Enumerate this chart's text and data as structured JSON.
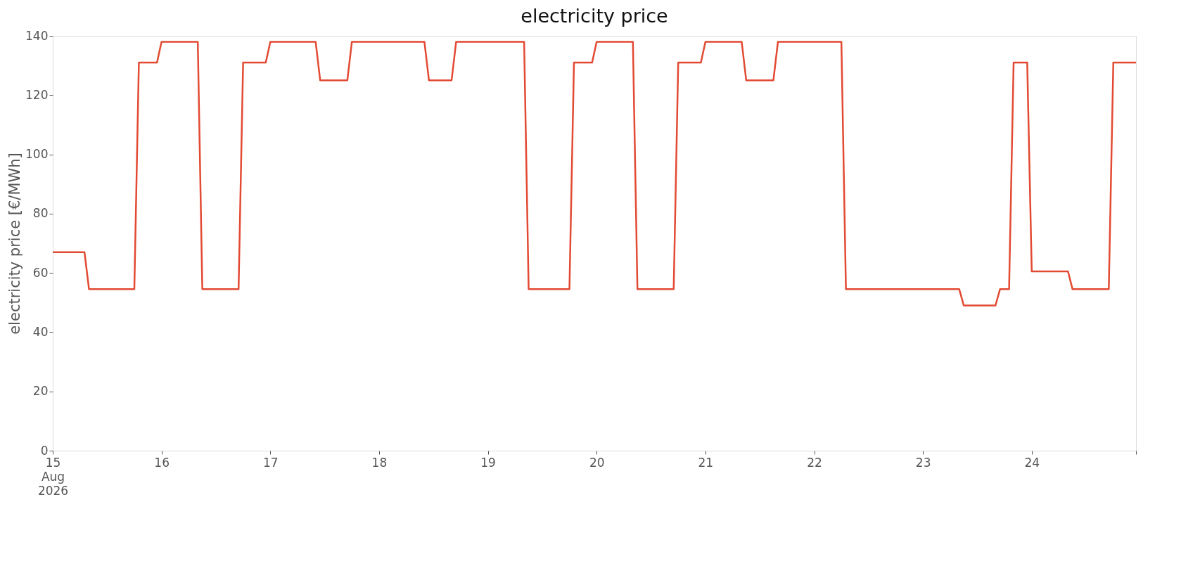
{
  "chart_data": {
    "type": "line",
    "title": "electricity price",
    "ylabel": "electricity price [€/MWh]",
    "x": [
      "2026-08-15T00:00",
      "2026-08-15T07:00",
      "2026-08-15T08:00",
      "2026-08-15T18:00",
      "2026-08-15T19:00",
      "2026-08-15T23:00",
      "2026-08-16T00:00",
      "2026-08-16T08:00",
      "2026-08-16T09:00",
      "2026-08-16T17:00",
      "2026-08-16T18:00",
      "2026-08-16T23:00",
      "2026-08-17T00:00",
      "2026-08-17T10:00",
      "2026-08-17T11:00",
      "2026-08-17T17:00",
      "2026-08-17T18:00",
      "2026-08-18T10:00",
      "2026-08-18T11:00",
      "2026-08-18T16:00",
      "2026-08-18T17:00",
      "2026-08-19T08:00",
      "2026-08-19T09:00",
      "2026-08-19T18:00",
      "2026-08-19T19:00",
      "2026-08-19T23:00",
      "2026-08-20T00:00",
      "2026-08-20T08:00",
      "2026-08-20T09:00",
      "2026-08-20T17:00",
      "2026-08-20T18:00",
      "2026-08-20T23:00",
      "2026-08-21T00:00",
      "2026-08-21T08:00",
      "2026-08-21T09:00",
      "2026-08-21T15:00",
      "2026-08-21T16:00",
      "2026-08-22T06:00",
      "2026-08-22T07:00",
      "2026-08-23T08:00",
      "2026-08-23T09:00",
      "2026-08-23T16:00",
      "2026-08-23T17:00",
      "2026-08-23T19:00",
      "2026-08-23T20:00",
      "2026-08-23T23:00",
      "2026-08-24T00:00",
      "2026-08-24T08:00",
      "2026-08-24T09:00",
      "2026-08-24T17:00",
      "2026-08-24T18:00",
      "2026-08-24T23:00"
    ],
    "series": [
      {
        "color": "#e24a33",
        "values": [
          67,
          67,
          54.5,
          54.5,
          131,
          131,
          138,
          138,
          54.5,
          54.5,
          131,
          131,
          138,
          138,
          125,
          125,
          138,
          138,
          125,
          125,
          138,
          138,
          54.5,
          54.5,
          131,
          131,
          138,
          138,
          54.5,
          54.5,
          131,
          131,
          138,
          138,
          125,
          125,
          138,
          138,
          54.5,
          54.5,
          49,
          49,
          54.5,
          54.5,
          131,
          131,
          60.5,
          60.5,
          54.5,
          54.5,
          131,
          131
        ]
      }
    ],
    "xlim": [
      "2026-08-15T00:00",
      "2026-08-24T23:00"
    ],
    "xticks": [
      {
        "value": "2026-08-15T00:00",
        "label": "15\nAug\n2026"
      },
      {
        "value": "2026-08-16T00:00",
        "label": "16"
      },
      {
        "value": "2026-08-17T00:00",
        "label": "17"
      },
      {
        "value": "2026-08-18T00:00",
        "label": "18"
      },
      {
        "value": "2026-08-19T00:00",
        "label": "19"
      },
      {
        "value": "2026-08-20T00:00",
        "label": "20"
      },
      {
        "value": "2026-08-21T00:00",
        "label": "21"
      },
      {
        "value": "2026-08-22T00:00",
        "label": "22"
      },
      {
        "value": "2026-08-23T00:00",
        "label": "23"
      },
      {
        "value": "2026-08-24T00:00",
        "label": "24"
      },
      {
        "value": "2026-08-24T23:00",
        "label": null
      }
    ],
    "ylim": [
      0,
      140
    ],
    "yticks": [
      0,
      20,
      40,
      60,
      80,
      100,
      120,
      140
    ],
    "grid": false,
    "line_style": "solid",
    "marker": "none"
  }
}
